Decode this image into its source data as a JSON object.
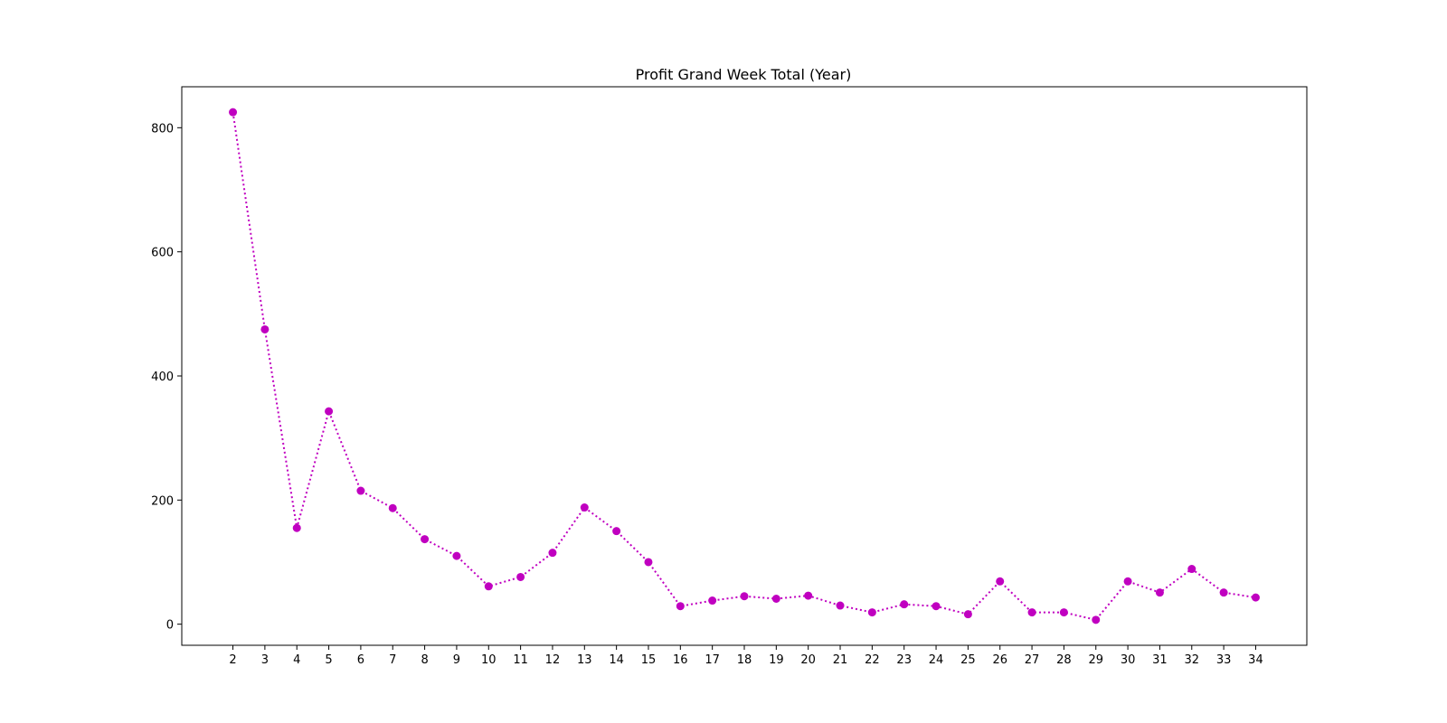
{
  "chart_data": {
    "type": "line",
    "title": "Profit Grand Week Total (Year)",
    "xlabel": "",
    "ylabel": "",
    "x": [
      2,
      3,
      4,
      5,
      6,
      7,
      8,
      9,
      10,
      11,
      12,
      13,
      14,
      15,
      16,
      17,
      18,
      19,
      20,
      21,
      22,
      23,
      24,
      25,
      26,
      27,
      28,
      29,
      30,
      31,
      32,
      33,
      34
    ],
    "series": [
      {
        "values": [
          825,
          475,
          155,
          343,
          215,
          187,
          137,
          110,
          61,
          76,
          115,
          188,
          150,
          100,
          29,
          38,
          45,
          41,
          46,
          30,
          19,
          32,
          29,
          16,
          69,
          19,
          19,
          7,
          69,
          51,
          89,
          51,
          43
        ]
      }
    ],
    "xlim": [
      0.4,
      35.6
    ],
    "ylim": [
      -34,
      866
    ],
    "yticks": [
      0,
      200,
      400,
      600,
      800
    ],
    "grid": false,
    "line_style": "dotted",
    "marker": "circle",
    "colors": {
      "series": "#c000c0",
      "axes": "#000000",
      "background": "#ffffff"
    }
  }
}
